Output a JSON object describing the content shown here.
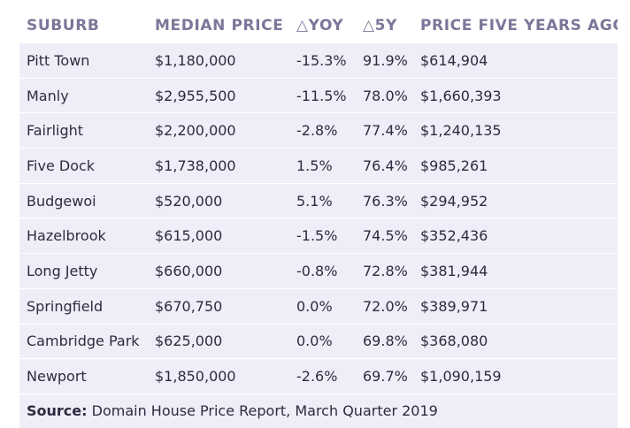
{
  "chart_data": {
    "type": "table",
    "columns": [
      "SUBURB",
      "MEDIAN PRICE",
      "△YOY",
      "△5Y",
      "PRICE FIVE YEARS AGO"
    ],
    "rows": [
      [
        "Pitt Town",
        "$1,180,000",
        "-15.3%",
        "91.9%",
        "$614,904"
      ],
      [
        "Manly",
        "$2,955,500",
        "-11.5%",
        "78.0%",
        "$1,660,393"
      ],
      [
        "Fairlight",
        "$2,200,000",
        "-2.8%",
        "77.4%",
        "$1,240,135"
      ],
      [
        "Five Dock",
        "$1,738,000",
        "1.5%",
        "76.4%",
        "$985,261"
      ],
      [
        "Budgewoi",
        "$520,000",
        "5.1%",
        "76.3%",
        "$294,952"
      ],
      [
        "Hazelbrook",
        "$615,000",
        "-1.5%",
        "74.5%",
        "$352,436"
      ],
      [
        "Long Jetty",
        "$660,000",
        "-0.8%",
        "72.8%",
        "$381,944"
      ],
      [
        "Springfield",
        "$670,750",
        "0.0%",
        "72.0%",
        "$389,971"
      ],
      [
        "Cambridge Park",
        "$625,000",
        "0.0%",
        "69.8%",
        "$368,080"
      ],
      [
        "Newport",
        "$1,850,000",
        "-2.6%",
        "69.7%",
        "$1,090,159"
      ]
    ]
  },
  "source": {
    "label": "Source:",
    "text": " Domain House Price Report, March Quarter 2019"
  },
  "colors": {
    "header_text": "#7b7799",
    "row_background": "#efeef8",
    "body_text": "#2d2b3f"
  }
}
